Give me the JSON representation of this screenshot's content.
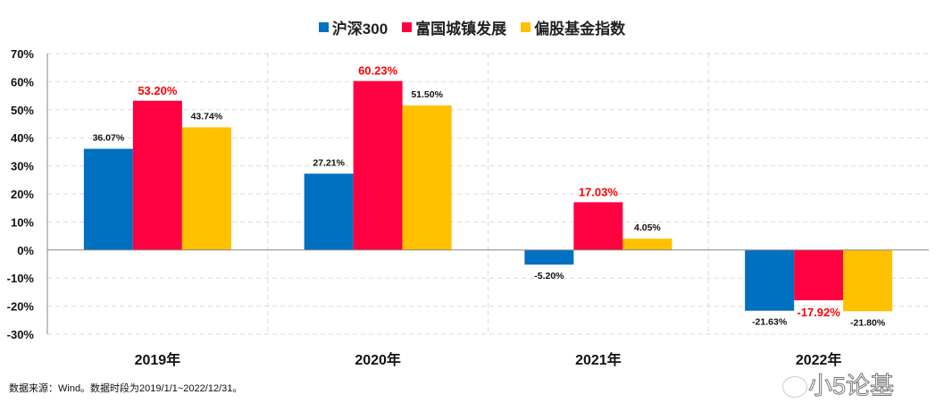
{
  "chart_data": {
    "type": "bar",
    "categories": [
      "2019年",
      "2020年",
      "2021年",
      "2022年"
    ],
    "series": [
      {
        "name": "沪深300",
        "color": "#0070C0",
        "values": [
          36.07,
          27.21,
          -5.2,
          -21.63
        ],
        "labels": [
          "36.07%",
          "27.21%",
          "-5.20%",
          "-21.63%"
        ],
        "label_color": "#111111"
      },
      {
        "name": "富国城镇发展",
        "color": "#FF0040",
        "values": [
          53.2,
          60.23,
          17.03,
          -17.92
        ],
        "labels": [
          "53.20%",
          "60.23%",
          "17.03%",
          "-17.92%"
        ],
        "label_color": "#FF0000"
      },
      {
        "name": "偏股基金指数",
        "color": "#FFC000",
        "values": [
          43.74,
          51.5,
          4.05,
          -21.8
        ],
        "labels": [
          "43.74%",
          "51.50%",
          "4.05%",
          "-21.80%"
        ],
        "label_color": "#111111"
      }
    ],
    "ylim": [
      -30,
      70
    ],
    "yticks": [
      "-30%",
      "-20%",
      "-10%",
      "0%",
      "10%",
      "20%",
      "30%",
      "40%",
      "50%",
      "60%",
      "70%"
    ],
    "grid": true,
    "legend": "top"
  },
  "footnote": "数据来源：Wind。数据时段为2019/1/1~2022/12/31。",
  "watermark": "小5论基"
}
